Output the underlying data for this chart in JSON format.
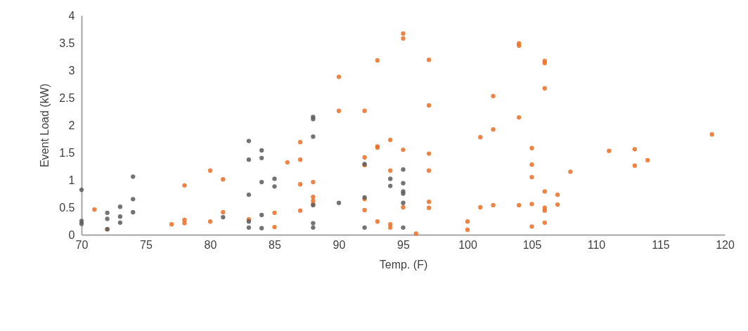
{
  "chart_data": {
    "type": "scatter",
    "xlabel": "Temp. (F)",
    "ylabel": "Event Load (kW)",
    "xlim": [
      70,
      120
    ],
    "xticks": [
      70,
      75,
      80,
      85,
      90,
      95,
      100,
      105,
      110,
      115,
      120
    ],
    "ylim": [
      0,
      4
    ],
    "yticks": [
      0,
      0.5,
      1,
      1.5,
      2,
      2.5,
      3,
      3.5,
      4
    ],
    "grid": false,
    "marker": "circle",
    "series": [
      {
        "color": "#ea6e25",
        "x": [
          71,
          72,
          77,
          78,
          78,
          78,
          80,
          80,
          81,
          81,
          83,
          85,
          85,
          86,
          87,
          87,
          87,
          87,
          88,
          88,
          88,
          88,
          90,
          90,
          92,
          92,
          92,
          92,
          92,
          93,
          93,
          93,
          93,
          94,
          94,
          94,
          94,
          95,
          95,
          95,
          95,
          96,
          97,
          97,
          97,
          97,
          97,
          97,
          100,
          100,
          101,
          101,
          102,
          102,
          102,
          104,
          104,
          104,
          104,
          105,
          105,
          105,
          105,
          105,
          106,
          106,
          106,
          106,
          106,
          106,
          106,
          107,
          107,
          108,
          111,
          113,
          113,
          114,
          119
        ],
        "values": [
          0.46,
          0.1,
          0.19,
          0.9,
          0.27,
          0.21,
          1.17,
          0.24,
          1.01,
          0.41,
          0.28,
          0.4,
          0.14,
          1.32,
          1.69,
          1.37,
          0.92,
          0.44,
          0.96,
          0.69,
          0.62,
          0.56,
          2.88,
          2.26,
          2.26,
          1.41,
          1.27,
          0.65,
          0.45,
          3.18,
          1.61,
          1.59,
          0.24,
          1.73,
          1.17,
          0.19,
          0.13,
          3.67,
          3.58,
          1.55,
          0.5,
          0.02,
          3.19,
          2.36,
          1.48,
          1.17,
          0.6,
          0.49,
          0.24,
          0.09,
          1.78,
          0.5,
          2.53,
          1.92,
          0.54,
          3.49,
          3.45,
          2.14,
          0.54,
          1.58,
          1.28,
          1.05,
          0.56,
          0.15,
          3.17,
          3.13,
          2.67,
          0.79,
          0.49,
          0.44,
          0.22,
          0.73,
          0.55,
          1.15,
          1.53,
          1.56,
          1.26,
          1.36,
          1.83
        ]
      },
      {
        "color": "#5a5a5a",
        "x": [
          70,
          70,
          70,
          72,
          72,
          72,
          73,
          73,
          73,
          74,
          74,
          74,
          81,
          83,
          83,
          83,
          83,
          83,
          84,
          84,
          84,
          84,
          84,
          85,
          85,
          88,
          88,
          88,
          88,
          88,
          88,
          90,
          92,
          92,
          92,
          94,
          94,
          95,
          95,
          95,
          95,
          95,
          95
        ],
        "values": [
          0.82,
          0.25,
          0.2,
          0.4,
          0.29,
          0.1,
          0.51,
          0.33,
          0.22,
          1.06,
          0.65,
          0.41,
          0.32,
          1.71,
          1.37,
          0.73,
          0.24,
          0.13,
          1.54,
          1.4,
          0.96,
          0.36,
          0.12,
          1.02,
          0.88,
          2.15,
          2.11,
          1.79,
          0.54,
          0.21,
          0.13,
          0.58,
          1.29,
          0.68,
          0.13,
          1.02,
          0.89,
          1.19,
          0.94,
          0.79,
          0.75,
          0.58,
          0.13
        ]
      }
    ]
  }
}
